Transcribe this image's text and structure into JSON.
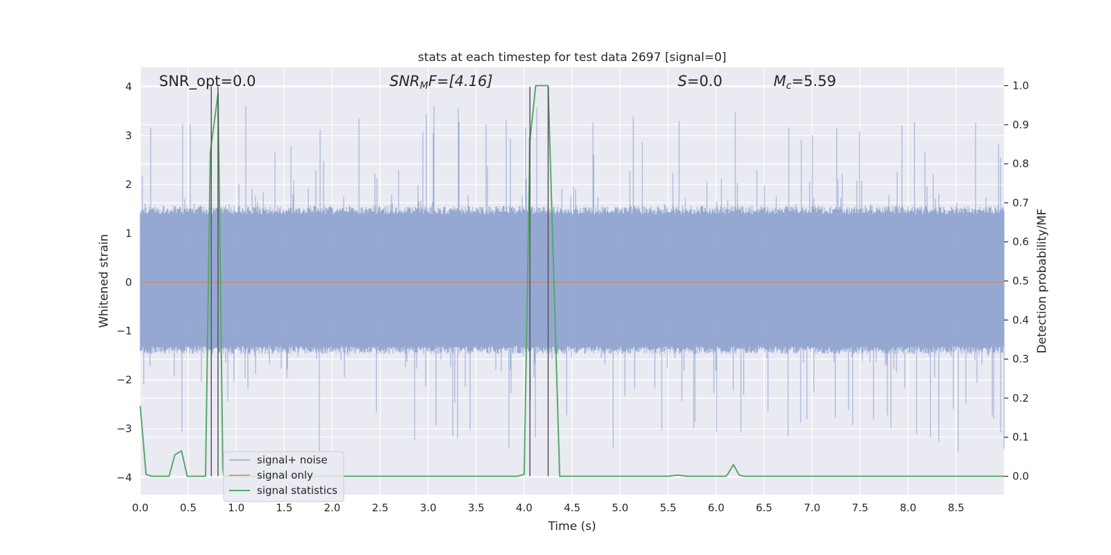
{
  "chart_data": {
    "type": "line",
    "title": "stats at each timestep for test data 2697 [signal=0]",
    "xlabel": "Time (s)",
    "ylabel": "Whitened strain",
    "y2label": "Detection probability/MF",
    "xlim": [
      0,
      9
    ],
    "ylim": [
      -4.35,
      4.4
    ],
    "y2lim": [
      -0.047,
      1.047
    ],
    "xticks": [
      "0.0",
      "0.5",
      "1.0",
      "1.5",
      "2.0",
      "2.5",
      "3.0",
      "3.5",
      "4.0",
      "4.5",
      "5.0",
      "5.5",
      "6.0",
      "6.5",
      "7.0",
      "7.5",
      "8.0",
      "8.5"
    ],
    "yticks": [
      "−4",
      "−3",
      "−2",
      "−1",
      "0",
      "1",
      "2",
      "3",
      "4"
    ],
    "y2ticks": [
      "0.0",
      "0.1",
      "0.2",
      "0.3",
      "0.4",
      "0.5",
      "0.6",
      "0.7",
      "0.8",
      "0.9",
      "1.0"
    ],
    "grid": true,
    "legend_position": "lower-left",
    "annotations": {
      "snr_opt": "SNR_opt=0.0",
      "snr_mf_main": "SNR",
      "snr_mf_sub": "M",
      "snr_mf_rest": "F=[4.16]",
      "s_symbol": "S",
      "s_value": "=0.0",
      "mc_symbol": "M",
      "mc_sub": "c",
      "mc_value": "=5.59"
    },
    "series": [
      {
        "name": "signal+ noise",
        "color": "#8fa4cf",
        "envelope": {
          "typical_range": [
            -1.6,
            1.7
          ],
          "peak_range": [
            -3.8,
            4.0
          ],
          "duration_s": 9.0
        }
      },
      {
        "name": "signal only",
        "color": "#dd8452",
        "x": [
          0,
          9
        ],
        "y": [
          0,
          0
        ]
      },
      {
        "name": "signal statistics",
        "color": "#55a868",
        "axis": "right",
        "x": [
          0.0,
          0.06,
          0.12,
          0.3,
          0.36,
          0.43,
          0.49,
          0.68,
          0.73,
          0.81,
          0.86,
          0.87,
          3.93,
          4.0,
          4.06,
          4.12,
          4.25,
          4.31,
          4.37,
          5.5,
          5.6,
          5.7,
          6.1,
          6.12,
          6.18,
          6.24,
          6.3,
          9.0
        ],
        "y": [
          0.18,
          0.005,
          0.0,
          0.0,
          0.055,
          0.065,
          0.0,
          0.0,
          0.83,
          0.98,
          0.02,
          0.0,
          0.0,
          0.005,
          0.86,
          1.0,
          1.0,
          0.5,
          0.0,
          0.0,
          0.003,
          0.0,
          0.0,
          0.005,
          0.03,
          0.003,
          0.0,
          0.0
        ]
      }
    ],
    "vertical_markers": [
      0.74,
      0.81,
      4.06,
      4.25
    ]
  }
}
